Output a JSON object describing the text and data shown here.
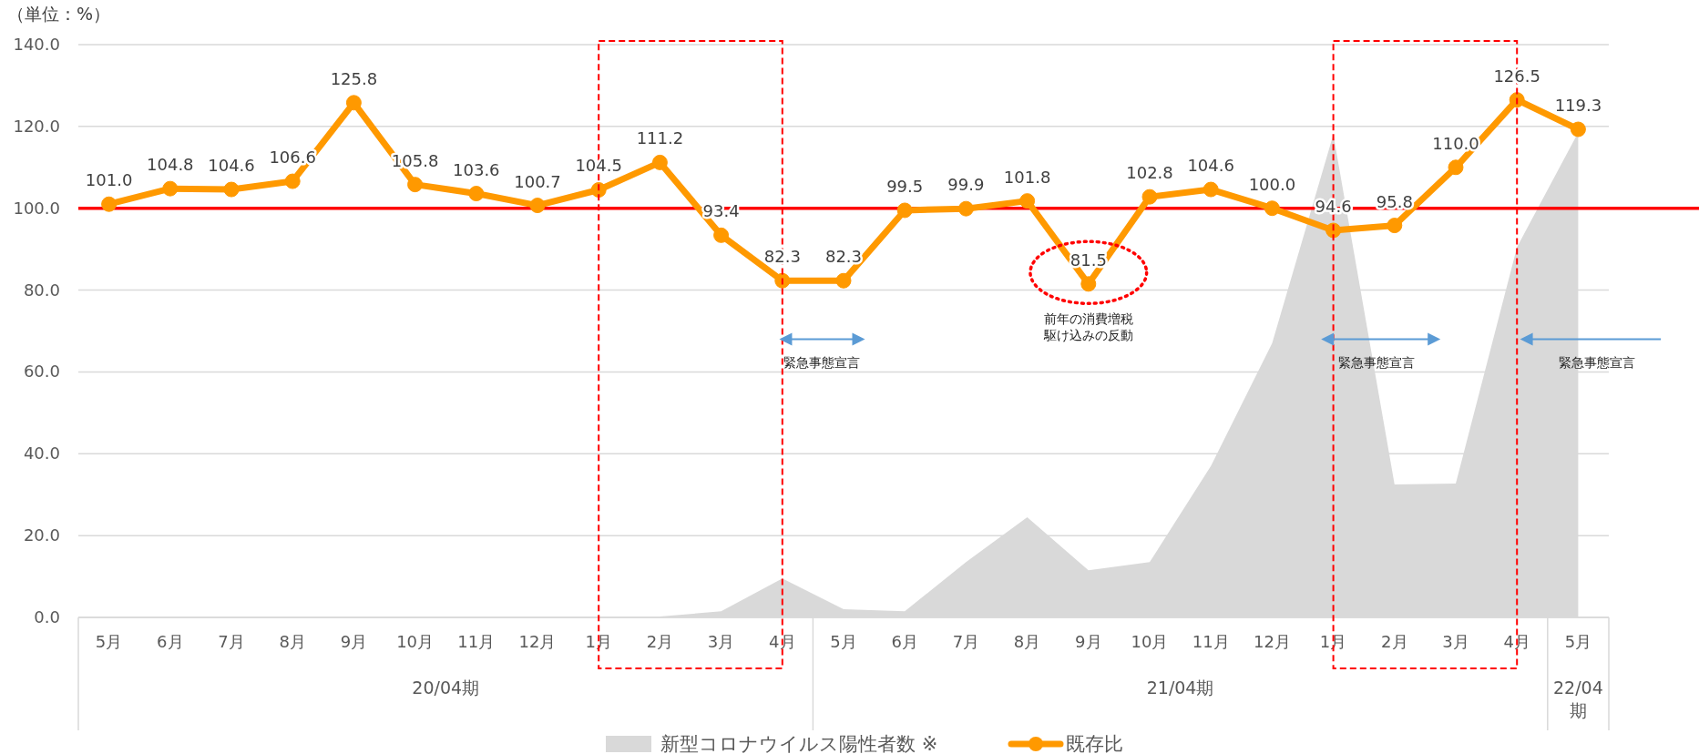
{
  "chart_data": {
    "type": "line",
    "ylabel": "（単位：%）",
    "categories": [
      "5月",
      "6月",
      "7月",
      "8月",
      "9月",
      "10月",
      "11月",
      "12月",
      "1月",
      "2月",
      "3月",
      "4月",
      "5月",
      "6月",
      "7月",
      "8月",
      "9月",
      "10月",
      "11月",
      "12月",
      "1月",
      "2月",
      "3月",
      "4月",
      "5月"
    ],
    "series": [
      {
        "name": "新型コロナウイルス陽性者数 ※",
        "type": "area",
        "color": "#d9d9d9",
        "values": [
          null,
          null,
          null,
          null,
          null,
          null,
          null,
          null,
          null,
          0.2,
          1.5,
          9.5,
          2,
          1.5,
          13.5,
          24.5,
          11.5,
          13.5,
          37,
          67,
          118,
          32.5,
          32.7,
          90.5,
          118.5
        ]
      },
      {
        "name": "既存比",
        "type": "line",
        "color": "#ff9900",
        "marker": "circle",
        "values": [
          101.0,
          104.8,
          104.6,
          106.6,
          125.8,
          105.8,
          103.6,
          100.7,
          104.5,
          111.2,
          93.4,
          82.3,
          82.3,
          99.5,
          99.9,
          101.8,
          81.5,
          102.8,
          104.6,
          100.0,
          94.6,
          95.8,
          110.0,
          126.5,
          119.3
        ],
        "value_labels": [
          "101.0",
          "104.8",
          "104.6",
          "106.6",
          "125.8",
          "105.8",
          "103.6",
          "100.7",
          "104.5",
          "111.2",
          "93.4",
          "82.3",
          "82.3",
          "99.5",
          "99.9",
          "101.8",
          "81.5",
          "102.8",
          "104.6",
          "100.0",
          "94.6",
          "95.8",
          "110.0",
          "126.5",
          "119.3"
        ]
      }
    ],
    "ylim": [
      0,
      140
    ],
    "yticks": [
      {
        "value": 0,
        "label": "0.0"
      },
      {
        "value": 20,
        "label": "20.0"
      },
      {
        "value": 40,
        "label": "40.0"
      },
      {
        "value": 60,
        "label": "60.0"
      },
      {
        "value": 80,
        "label": "80.0"
      },
      {
        "value": 100,
        "label": "100.0"
      },
      {
        "value": 120,
        "label": "120.0"
      },
      {
        "value": 140,
        "label": "140.0"
      }
    ],
    "grid": "y",
    "ref_lines": [
      {
        "axis": "y",
        "value": 100,
        "color": "#ff0000"
      }
    ],
    "annotations": [
      "20/04期",
      "21/04期",
      "22/04\n期",
      "前年の消費増税",
      "駆け込みの反動",
      "緊急事態宣言",
      "緊急事態宣言",
      "緊急事態宣言"
    ],
    "legend": "bottom"
  }
}
